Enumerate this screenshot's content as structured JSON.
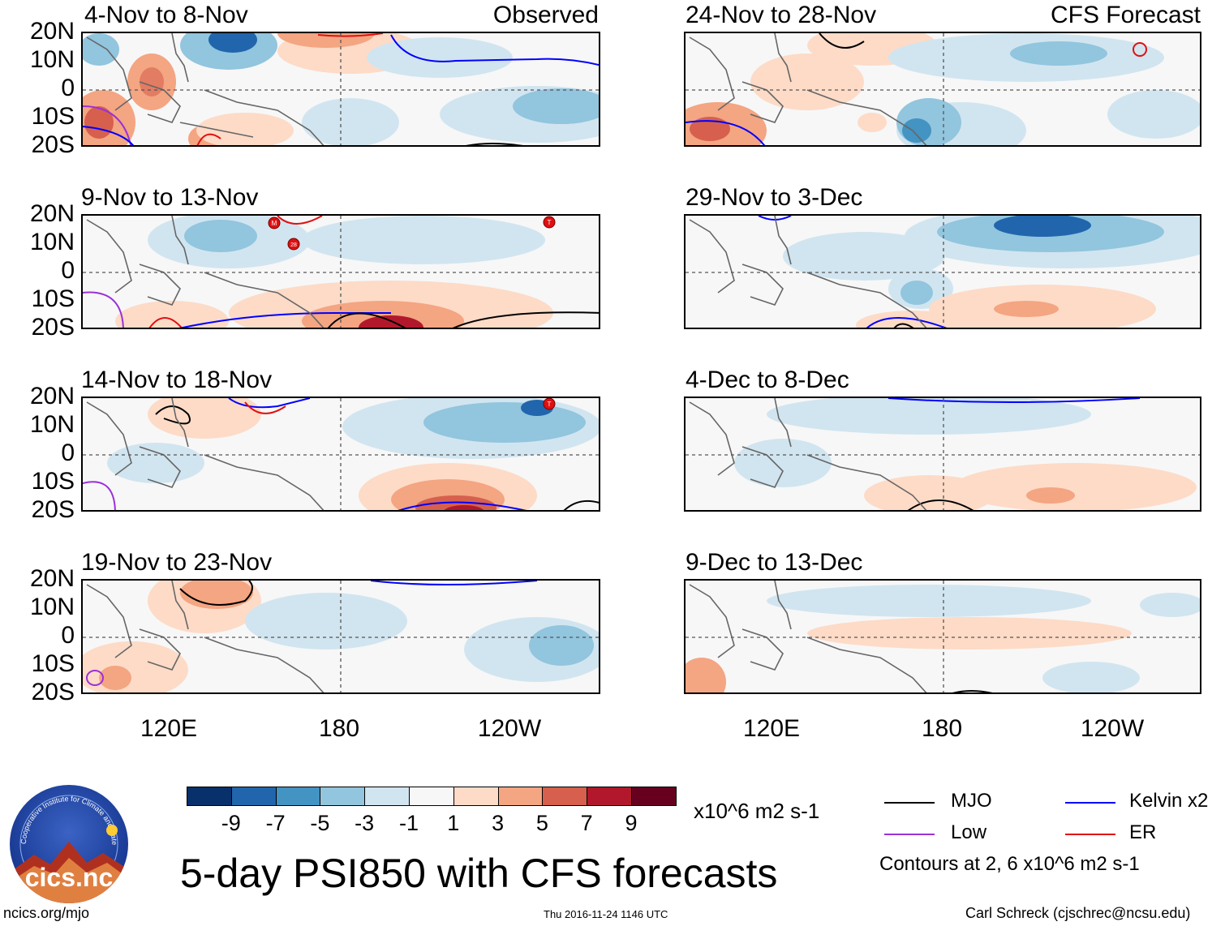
{
  "header": {
    "left_tag": "Observed",
    "right_tag": "CFS Forecast"
  },
  "panels_left": [
    {
      "title": "4-Nov to 8-Nov"
    },
    {
      "title": "9-Nov to 13-Nov"
    },
    {
      "title": "14-Nov to 18-Nov"
    },
    {
      "title": "19-Nov to 23-Nov"
    }
  ],
  "panels_right": [
    {
      "title": "24-Nov to 28-Nov"
    },
    {
      "title": "29-Nov to 3-Dec"
    },
    {
      "title": "4-Dec to 8-Dec"
    },
    {
      "title": "9-Dec to 13-Dec"
    }
  ],
  "lat_labels": [
    "20N",
    "10N",
    "0",
    "10S",
    "20S"
  ],
  "lon_labels": [
    "120E",
    "180",
    "120W"
  ],
  "colorbar": {
    "colors": [
      "#08306b",
      "#2166ac",
      "#4393c3",
      "#92c5de",
      "#d1e5f0",
      "#f7f7f7",
      "#fddbc7",
      "#f4a582",
      "#d6604d",
      "#b2182b",
      "#67001f"
    ],
    "ticks": [
      "-9",
      "-7",
      "-5",
      "-3",
      "-1",
      "1",
      "3",
      "5",
      "7",
      "9"
    ],
    "units": "x10^6 m2 s-1"
  },
  "legend": {
    "mjo": "MJO",
    "kelvin": "Kelvin x2",
    "low": "Low",
    "er": "ER",
    "contours_note": "Contours at 2, 6 x10^6 m2 s-1",
    "colors": {
      "mjo": "#000000",
      "kelvin": "#0000ff",
      "low": "#9b30d9",
      "er": "#e01010"
    }
  },
  "title": "5-day PSI850 with CFS forecasts",
  "footer": {
    "url": "ncics.org/mjo",
    "timestamp": "Thu 2016-11-24 1146 UTC",
    "author": "Carl Schreck (cjschrec@ncsu.edu)"
  },
  "logo": {
    "ring_text": "Cooperative Institute for Climate and Satellites",
    "name": "cics.nc"
  },
  "storm_markers": [
    "M",
    "28",
    "T",
    "T"
  ]
}
